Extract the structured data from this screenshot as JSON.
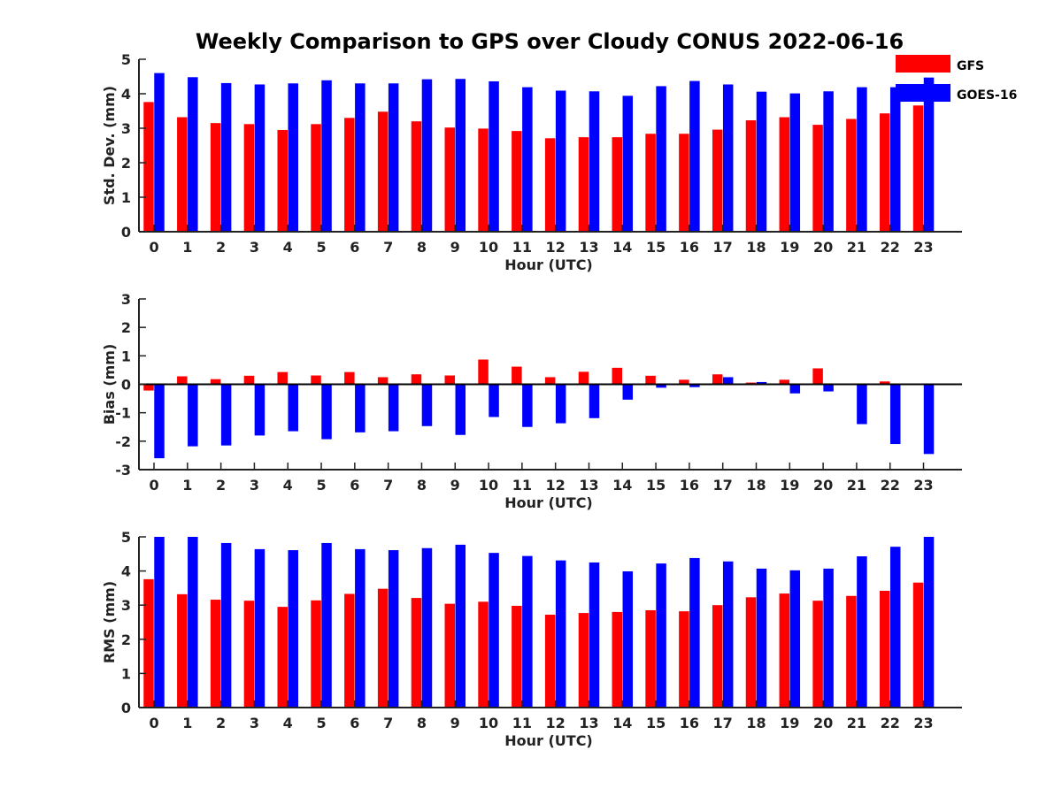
{
  "title": "Weekly Comparison to GPS over Cloudy CONUS 2022-06-16",
  "colors": {
    "GFS": "#ff0000",
    "GOES-16": "#0000ff",
    "axis": "#222222",
    "zero_line": "#000000"
  },
  "legend": {
    "placement": "top-right",
    "entries": [
      "GFS",
      "GOES-16"
    ]
  },
  "chart_data": [
    {
      "type": "bar",
      "title": "",
      "xlabel": "Hour (UTC)",
      "ylabel": "Std. Dev. (mm)",
      "ylim": [
        0,
        5
      ],
      "yticks": [
        0,
        1,
        2,
        3,
        4,
        5
      ],
      "grid": false,
      "categories": [
        "0",
        "1",
        "2",
        "3",
        "4",
        "5",
        "6",
        "7",
        "8",
        "9",
        "10",
        "11",
        "12",
        "13",
        "14",
        "15",
        "16",
        "17",
        "18",
        "19",
        "20",
        "21",
        "22",
        "23"
      ],
      "series": [
        {
          "name": "GFS",
          "values": [
            3.76,
            3.32,
            3.15,
            3.12,
            2.95,
            3.12,
            3.3,
            3.48,
            3.2,
            3.02,
            2.99,
            2.92,
            2.71,
            2.74,
            2.74,
            2.84,
            2.84,
            2.96,
            3.23,
            3.32,
            3.1,
            3.27,
            3.43,
            3.66
          ]
        },
        {
          "name": "GOES-16",
          "values": [
            4.6,
            4.48,
            4.31,
            4.27,
            4.3,
            4.39,
            4.3,
            4.3,
            4.42,
            4.43,
            4.36,
            4.19,
            4.09,
            4.07,
            3.94,
            4.22,
            4.37,
            4.27,
            4.06,
            4.01,
            4.07,
            4.19,
            4.19,
            4.47
          ]
        }
      ]
    },
    {
      "type": "bar",
      "title": "",
      "xlabel": "Hour (UTC)",
      "ylabel": "Bias (mm)",
      "ylim": [
        -3,
        3
      ],
      "yticks": [
        -3,
        -2,
        -1,
        0,
        1,
        2,
        3
      ],
      "grid": false,
      "categories": [
        "0",
        "1",
        "2",
        "3",
        "4",
        "5",
        "6",
        "7",
        "8",
        "9",
        "10",
        "11",
        "12",
        "13",
        "14",
        "15",
        "16",
        "17",
        "18",
        "19",
        "20",
        "21",
        "22",
        "23"
      ],
      "series": [
        {
          "name": "GFS",
          "values": [
            -0.22,
            0.28,
            0.18,
            0.3,
            0.43,
            0.31,
            0.43,
            0.25,
            0.35,
            0.31,
            0.87,
            0.62,
            0.25,
            0.44,
            0.58,
            0.3,
            0.16,
            0.35,
            0.06,
            0.16,
            0.56,
            0.03,
            0.1,
            0.0
          ]
        },
        {
          "name": "GOES-16",
          "values": [
            -2.6,
            -2.18,
            -2.15,
            -1.8,
            -1.65,
            -1.93,
            -1.69,
            -1.65,
            -1.47,
            -1.78,
            -1.15,
            -1.5,
            -1.37,
            -1.19,
            -0.54,
            -0.12,
            -0.1,
            0.25,
            0.08,
            -0.32,
            -0.25,
            -1.4,
            -2.1,
            -2.45
          ]
        }
      ]
    },
    {
      "type": "bar",
      "title": "",
      "xlabel": "Hour (UTC)",
      "ylabel": "RMS (mm)",
      "ylim": [
        0,
        5
      ],
      "yticks": [
        0,
        1,
        2,
        3,
        4,
        5
      ],
      "grid": false,
      "categories": [
        "0",
        "1",
        "2",
        "3",
        "4",
        "5",
        "6",
        "7",
        "8",
        "9",
        "10",
        "11",
        "12",
        "13",
        "14",
        "15",
        "16",
        "17",
        "18",
        "19",
        "20",
        "21",
        "22",
        "23"
      ],
      "series": [
        {
          "name": "GFS",
          "values": [
            3.76,
            3.32,
            3.16,
            3.13,
            2.95,
            3.14,
            3.33,
            3.48,
            3.21,
            3.04,
            3.1,
            2.98,
            2.72,
            2.77,
            2.8,
            2.85,
            2.82,
            3.0,
            3.23,
            3.34,
            3.13,
            3.27,
            3.42,
            3.66
          ]
        },
        {
          "name": "GOES-16",
          "values": [
            5.0,
            5.0,
            4.82,
            4.64,
            4.61,
            4.82,
            4.64,
            4.61,
            4.67,
            4.77,
            4.53,
            4.44,
            4.31,
            4.25,
            3.99,
            4.22,
            4.38,
            4.28,
            4.07,
            4.02,
            4.07,
            4.43,
            4.71,
            5.0
          ]
        }
      ]
    }
  ]
}
